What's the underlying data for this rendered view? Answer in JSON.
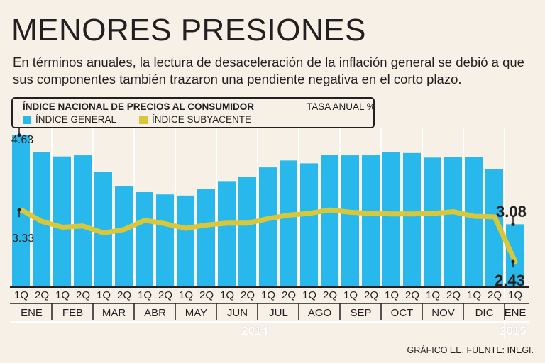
{
  "header": {
    "title": "MENORES PRESIONES",
    "subtitle": "En términos anuales, la lectura de desaceleración de la inflación general se debió a que sus componentes también trazaron  una pendiente negativa en el corto plazo."
  },
  "legend": {
    "title": "ÍNDICE NACIONAL DE PRECIOS AL CONSUMIDOR",
    "unit": "TASA ANUAL %",
    "general_label": "ÍNDICE GENERAL",
    "sub_label": "ÍNDICE SUBYACENTE"
  },
  "years": {
    "y2014": "2014",
    "y2015": "2015"
  },
  "source": "GRÁFICO EE. FUENTE: INEGI.",
  "colors": {
    "general": "#29b8ec",
    "subyacente": "#d9c73b",
    "background": "#f7f0e6",
    "grid": "#ffffff"
  },
  "chart_data": {
    "type": "bar",
    "title": "ÍNDICE NACIONAL DE PRECIOS AL CONSUMIDOR",
    "ylabel": "TASA ANUAL %",
    "ylim": [
      2.0,
      4.7
    ],
    "grid": "vertical",
    "categories": [
      "1Q",
      "2Q",
      "1Q",
      "2Q",
      "1Q",
      "2Q",
      "1Q",
      "2Q",
      "1Q",
      "2Q",
      "1Q",
      "2Q",
      "1Q",
      "2Q",
      "1Q",
      "2Q",
      "1Q",
      "2Q",
      "1Q",
      "2Q",
      "1Q",
      "2Q",
      "1Q",
      "2Q",
      "1Q"
    ],
    "months": [
      {
        "label": "ENE",
        "count": 2
      },
      {
        "label": "FEB",
        "count": 2
      },
      {
        "label": "MAR",
        "count": 2
      },
      {
        "label": "ABR",
        "count": 2
      },
      {
        "label": "MAY",
        "count": 2
      },
      {
        "label": "JUN",
        "count": 2
      },
      {
        "label": "JUL",
        "count": 2
      },
      {
        "label": "AGO",
        "count": 2
      },
      {
        "label": "SEP",
        "count": 2
      },
      {
        "label": "OCT",
        "count": 2
      },
      {
        "label": "NOV",
        "count": 2
      },
      {
        "label": "DIC",
        "count": 2
      },
      {
        "label": "ENE",
        "count": 1
      }
    ],
    "series": [
      {
        "name": "ÍNDICE GENERAL",
        "type": "bar",
        "values": [
          4.63,
          4.34,
          4.26,
          4.28,
          3.99,
          3.75,
          3.64,
          3.6,
          3.58,
          3.7,
          3.82,
          3.91,
          4.07,
          4.19,
          4.14,
          4.29,
          4.28,
          4.28,
          4.34,
          4.32,
          4.24,
          4.25,
          4.25,
          4.04,
          3.08
        ]
      },
      {
        "name": "ÍNDICE SUBYACENTE",
        "type": "line",
        "values": [
          3.33,
          3.13,
          3.03,
          3.05,
          2.93,
          2.99,
          3.15,
          3.09,
          3.01,
          3.07,
          3.1,
          3.1,
          3.18,
          3.24,
          3.27,
          3.33,
          3.29,
          3.27,
          3.26,
          3.26,
          3.27,
          3.3,
          3.22,
          3.21,
          2.43
        ]
      }
    ],
    "annotations": [
      {
        "label": "4.63",
        "series": 0,
        "index": 0
      },
      {
        "label": "3.33",
        "series": 1,
        "index": 0
      },
      {
        "label": "3.08",
        "series": 0,
        "index": 24
      },
      {
        "label": "2.43",
        "series": 1,
        "index": 24
      }
    ]
  }
}
